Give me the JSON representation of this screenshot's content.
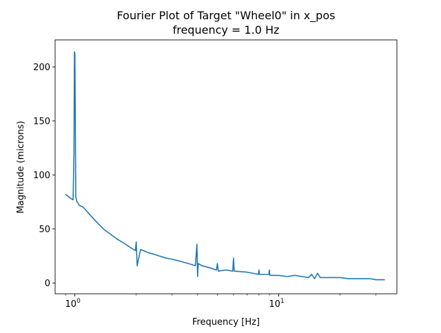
{
  "chart_data": {
    "type": "line",
    "title": "Fourier Plot of Target \"Wheel0\" in x_pos",
    "subtitle": "frequency = 1.0 Hz",
    "xlabel": "Frequency [Hz]",
    "ylabel": "Magnitude (microns)",
    "xscale": "log",
    "xlim": [
      0.8,
      38
    ],
    "ylim": [
      -10,
      225
    ],
    "grid": false,
    "xticks": [
      {
        "value": 1,
        "label": "10",
        "exp": "0"
      },
      {
        "value": 10,
        "label": "10",
        "exp": "1"
      }
    ],
    "yticks": [
      {
        "value": 0,
        "label": "0"
      },
      {
        "value": 50,
        "label": "50"
      },
      {
        "value": 100,
        "label": "100"
      },
      {
        "value": 150,
        "label": "150"
      },
      {
        "value": 200,
        "label": "200"
      }
    ],
    "series": [
      {
        "color": "#1f77b4",
        "x": [
          0.9,
          0.93,
          0.96,
          0.98,
          0.99,
          0.995,
          1.0,
          1.005,
          1.01,
          1.02,
          1.05,
          1.1,
          1.15,
          1.2,
          1.3,
          1.4,
          1.5,
          1.6,
          1.7,
          1.8,
          1.9,
          1.98,
          2.0,
          2.02,
          2.1,
          2.3,
          2.5,
          2.8,
          3.0,
          3.3,
          3.6,
          3.9,
          3.97,
          4.0,
          4.03,
          4.2,
          4.6,
          4.95,
          5.0,
          5.05,
          5.5,
          5.95,
          6.0,
          6.05,
          7.0,
          7.95,
          8.0,
          8.05,
          8.95,
          9.0,
          9.05,
          10.0,
          11.0,
          12.0,
          13.0,
          14.0,
          14.5,
          15.0,
          15.5,
          16.0,
          18.0,
          20.0,
          22.0,
          25.0,
          28.0,
          30.0,
          32.0,
          33.0
        ],
        "y": [
          82,
          80,
          78,
          77,
          120,
          214,
          212,
          150,
          80,
          76,
          72,
          70,
          66,
          62,
          55,
          49,
          45,
          41,
          38,
          35,
          32,
          30,
          38,
          16,
          31,
          28,
          26,
          23,
          22,
          20,
          18,
          16,
          36,
          6,
          18,
          16,
          14,
          12,
          18,
          11,
          12,
          11,
          23,
          11,
          10,
          8,
          12,
          8,
          8,
          12,
          7,
          7,
          6,
          7,
          6,
          5,
          8,
          4,
          9,
          5,
          5,
          5,
          4,
          4,
          4,
          3,
          3,
          3
        ]
      }
    ]
  }
}
